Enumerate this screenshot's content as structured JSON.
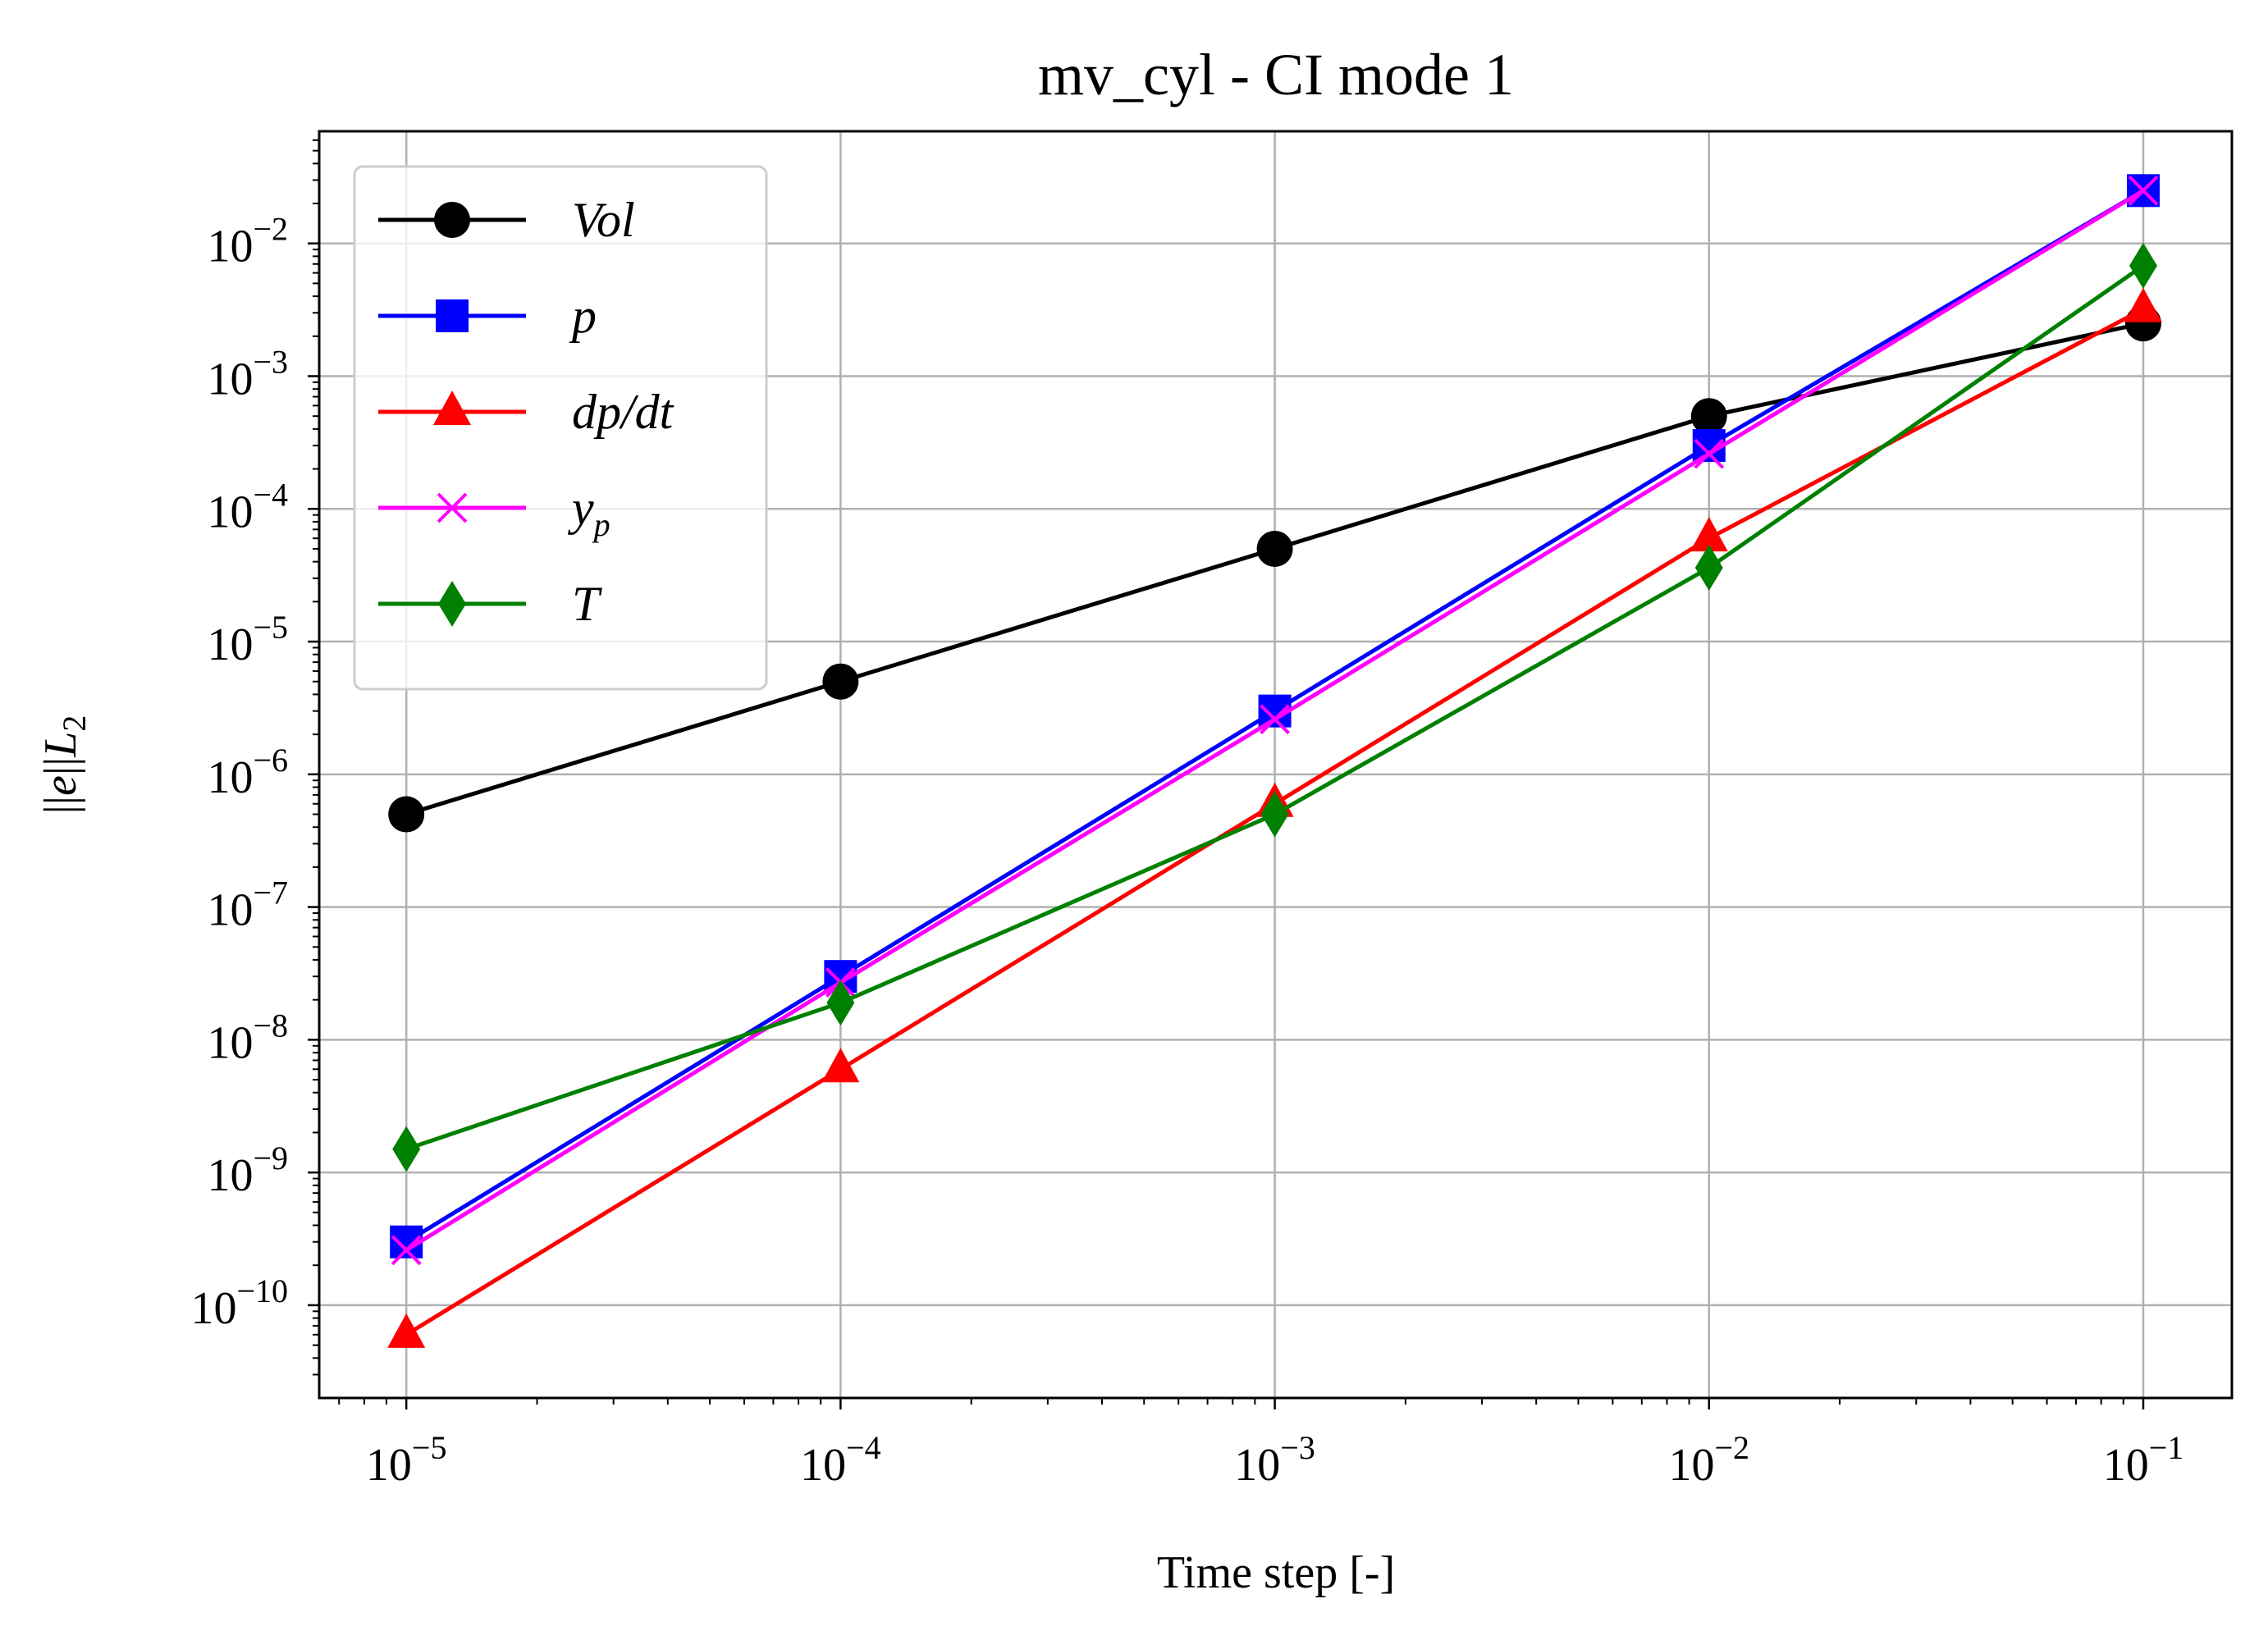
{
  "chart_data": {
    "type": "line",
    "title": "mv_cyl - CI mode 1",
    "xlabel": "Time step [-]",
    "ylabel": "||e||L2",
    "x_scale": "log",
    "y_scale": "log",
    "xlim": [
      6.3e-06,
      0.16
    ],
    "ylim": [
      2e-11,
      0.07
    ],
    "grid": true,
    "legend_position": "upper-left",
    "x_ticks": [
      {
        "exp": "-5",
        "value": 1e-05
      },
      {
        "exp": "-4",
        "value": 0.0001
      },
      {
        "exp": "-3",
        "value": 0.001
      },
      {
        "exp": "-2",
        "value": 0.01
      },
      {
        "exp": "-1",
        "value": 0.1
      }
    ],
    "y_ticks": [
      {
        "exp": "-10",
        "value": 1e-10
      },
      {
        "exp": "-9",
        "value": 1e-09
      },
      {
        "exp": "-8",
        "value": 1e-08
      },
      {
        "exp": "-7",
        "value": 1e-07
      },
      {
        "exp": "-6",
        "value": 1e-06
      },
      {
        "exp": "-5",
        "value": 1e-05
      },
      {
        "exp": "-4",
        "value": 0.0001
      },
      {
        "exp": "-3",
        "value": 0.001
      },
      {
        "exp": "-2",
        "value": 0.01
      }
    ],
    "tick_base": "10",
    "x": [
      1e-05,
      0.0001,
      0.001,
      0.01,
      0.1
    ],
    "series": [
      {
        "name": "Vol",
        "color": "#000000",
        "marker": "circle",
        "values": [
          5e-07,
          5e-06,
          5e-05,
          0.0005,
          0.0025
        ]
      },
      {
        "name": "p",
        "color": "#0000ff",
        "marker": "square",
        "values": [
          3e-10,
          3e-08,
          3e-06,
          0.0003,
          0.025
        ]
      },
      {
        "name": "dp/dt",
        "color": "#ff0000",
        "marker": "triangle",
        "values": [
          6e-11,
          6e-09,
          6e-07,
          6e-05,
          0.0032
        ]
      },
      {
        "name": "y_p",
        "color": "#ff00ff",
        "marker": "x",
        "values": [
          2.6e-10,
          2.7e-08,
          2.6e-06,
          0.00026,
          0.025
        ]
      },
      {
        "name": "T",
        "color": "#008000",
        "marker": "diamond",
        "values": [
          1.5e-09,
          1.9e-08,
          5e-07,
          3.6e-05,
          0.0068
        ]
      }
    ]
  }
}
